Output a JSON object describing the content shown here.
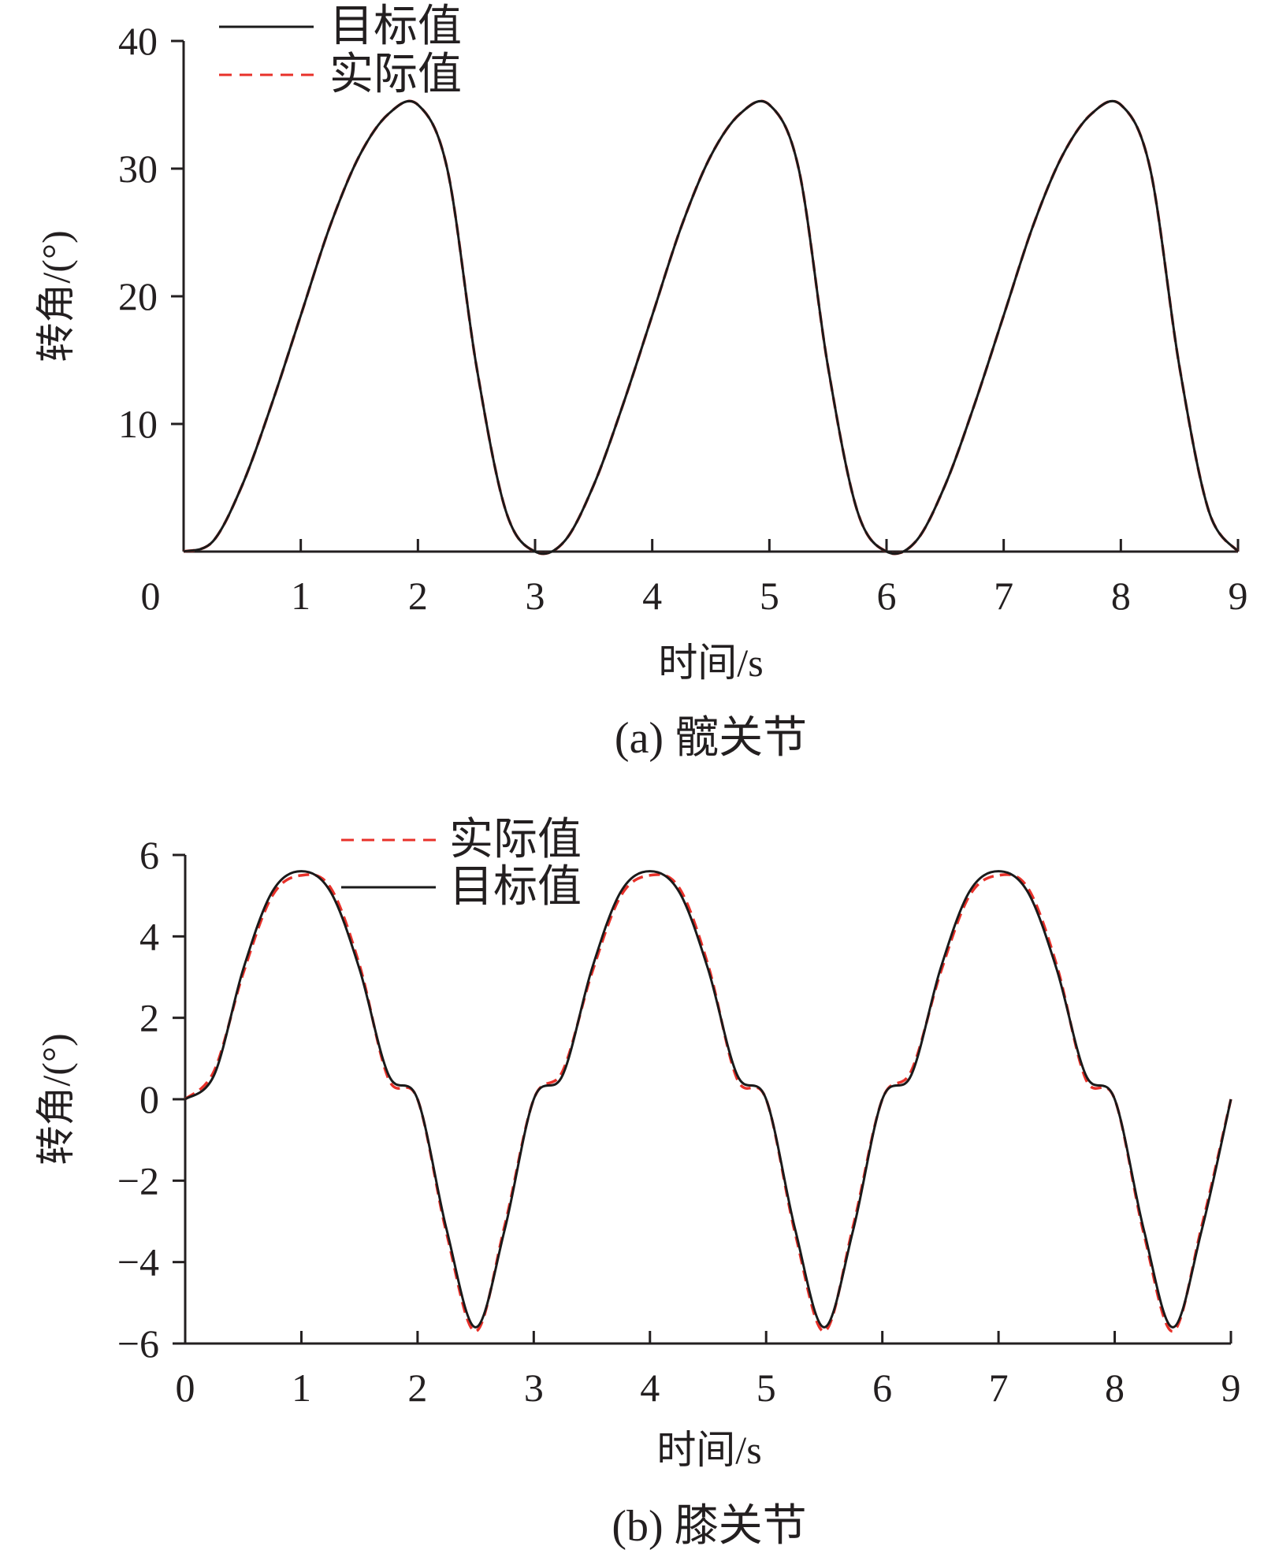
{
  "colors": {
    "target": "#1a1a1a",
    "actual": "#e8312a",
    "axis": "#231f20"
  },
  "chart_data": [
    {
      "type": "line",
      "caption": "(a)  髋关节",
      "xlabel": "时间/s",
      "ylabel": "转角/(°)",
      "xlim": [
        0,
        9
      ],
      "ylim": [
        0,
        40
      ],
      "x_ticks": [
        "0",
        "1",
        "2",
        "3",
        "4",
        "5",
        "6",
        "7",
        "8",
        "9"
      ],
      "y_ticks": [
        "10",
        "20",
        "30",
        "40"
      ],
      "y_tick_values": [
        10,
        20,
        30,
        40
      ],
      "legend_position": "top-left",
      "legend": [
        "目标值",
        "实际值"
      ],
      "series": [
        {
          "name": "目标值",
          "style": "solid",
          "x": [
            0,
            0.25,
            0.5,
            0.75,
            1.0,
            1.25,
            1.5,
            1.75,
            2.0,
            2.25,
            2.5,
            2.75,
            3.0,
            3.25,
            3.5,
            3.75,
            4.0,
            4.25,
            4.5,
            4.75,
            5.0,
            5.25,
            5.5,
            5.75,
            6.0,
            6.25,
            6.5,
            6.75,
            7.0,
            7.25,
            7.5,
            7.75,
            8.0,
            8.25,
            8.5,
            8.75,
            9.0
          ],
          "y": [
            0,
            0.8,
            5.2,
            11.5,
            18.5,
            25.5,
            31.0,
            34.3,
            35.0,
            30.0,
            14.5,
            3.2,
            0,
            0.8,
            5.2,
            11.5,
            18.5,
            25.5,
            31.0,
            34.3,
            35.0,
            30.0,
            14.5,
            3.2,
            0,
            0.8,
            5.2,
            11.5,
            18.5,
            25.5,
            31.0,
            34.3,
            35.0,
            30.0,
            14.5,
            3.2,
            0
          ]
        },
        {
          "name": "实际值",
          "style": "dashed",
          "x": [
            0,
            0.25,
            0.5,
            0.75,
            1.0,
            1.25,
            1.5,
            1.75,
            2.0,
            2.25,
            2.5,
            2.75,
            3.0,
            3.25,
            3.5,
            3.75,
            4.0,
            4.25,
            4.5,
            4.75,
            5.0,
            5.25,
            5.5,
            5.75,
            6.0,
            6.25,
            6.5,
            6.75,
            7.0,
            7.25,
            7.5,
            7.75,
            8.0,
            8.25,
            8.5,
            8.75,
            9.0
          ],
          "y": [
            0,
            0.8,
            5.2,
            11.5,
            18.5,
            25.5,
            31.0,
            34.3,
            35.0,
            30.0,
            14.5,
            3.2,
            0,
            0.8,
            5.2,
            11.5,
            18.5,
            25.5,
            31.0,
            34.3,
            35.0,
            30.0,
            14.5,
            3.2,
            0,
            0.8,
            5.2,
            11.5,
            18.5,
            25.5,
            31.0,
            34.3,
            35.0,
            30.0,
            14.5,
            3.2,
            0
          ]
        }
      ]
    },
    {
      "type": "line",
      "caption": "(b)  膝关节",
      "xlabel": "时间/s",
      "ylabel": "转角/(°)",
      "xlim": [
        0,
        9
      ],
      "ylim": [
        -6,
        6
      ],
      "x_ticks": [
        "0",
        "1",
        "2",
        "3",
        "4",
        "5",
        "6",
        "7",
        "8",
        "9"
      ],
      "y_ticks": [
        "−6",
        "−4",
        "−2",
        "0",
        "2",
        "4",
        "6"
      ],
      "y_tick_values": [
        -6,
        -4,
        -2,
        0,
        2,
        4,
        6
      ],
      "legend_position": "top-left",
      "legend": [
        "实际值",
        "目标值"
      ],
      "series": [
        {
          "name": "目标值",
          "style": "solid",
          "x": [
            0,
            0.25,
            0.5,
            0.75,
            1.0,
            1.25,
            1.5,
            1.75,
            2.0,
            2.25,
            2.5,
            2.75,
            3.0,
            3.25,
            3.5,
            3.75,
            4.0,
            4.25,
            4.5,
            4.75,
            5.0,
            5.25,
            5.5,
            5.75,
            6.0,
            6.25,
            6.5,
            6.75,
            7.0,
            7.25,
            7.5,
            7.75,
            8.0,
            8.25,
            8.5,
            8.75,
            9.0
          ],
          "y": [
            0,
            0.6,
            3.2,
            5.1,
            5.6,
            5.1,
            3.2,
            0.6,
            0,
            -3.2,
            -5.6,
            -3.2,
            0,
            0.6,
            3.2,
            5.1,
            5.6,
            5.1,
            3.2,
            0.6,
            0,
            -3.2,
            -5.6,
            -3.2,
            0,
            0.6,
            3.2,
            5.1,
            5.6,
            5.1,
            3.2,
            0.6,
            0,
            -3.2,
            -5.6,
            -3.2,
            0
          ]
        },
        {
          "name": "实际值",
          "style": "dashed",
          "x": [
            0,
            0.25,
            0.5,
            0.75,
            1.0,
            1.25,
            1.5,
            1.75,
            2.0,
            2.25,
            2.5,
            2.75,
            3.0,
            3.25,
            3.5,
            3.75,
            4.0,
            4.25,
            4.5,
            4.75,
            5.0,
            5.25,
            5.5,
            5.75,
            6.0,
            6.25,
            6.5,
            6.75,
            7.0,
            7.25,
            7.5,
            7.75,
            8.0,
            8.25,
            8.5,
            8.75,
            9.0
          ],
          "y": [
            0,
            0.7,
            3.1,
            5.0,
            5.5,
            5.2,
            3.3,
            0.5,
            0,
            -3.3,
            -5.7,
            -3.1,
            0,
            0.7,
            3.1,
            5.0,
            5.5,
            5.2,
            3.3,
            0.5,
            0,
            -3.3,
            -5.7,
            -3.1,
            0,
            0.7,
            3.1,
            5.0,
            5.5,
            5.2,
            3.3,
            0.5,
            0,
            -3.3,
            -5.7,
            -3.1,
            0
          ]
        }
      ]
    }
  ]
}
